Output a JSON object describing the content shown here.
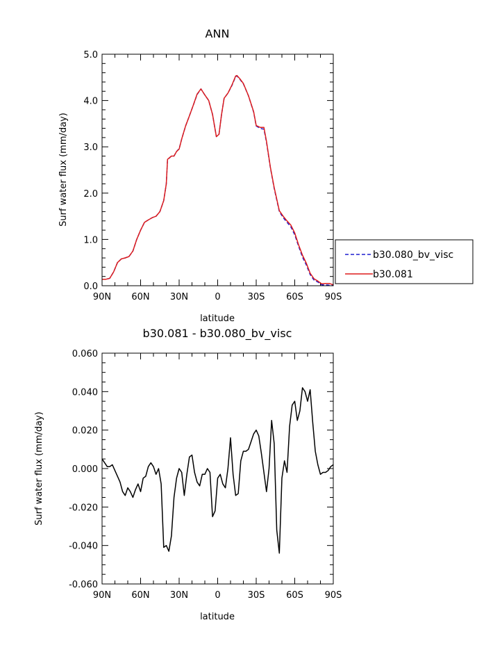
{
  "chart_data": [
    {
      "type": "line",
      "title": "ANN",
      "xlabel": "latitude",
      "ylabel": "Surf water flux (mm/day)",
      "xlim": [
        90,
        -90
      ],
      "ylim": [
        0,
        5
      ],
      "x_tick_values": [
        90,
        60,
        30,
        0,
        -30,
        -60,
        -90
      ],
      "x_tick_labels": [
        "90N",
        "60N",
        "30N",
        "0",
        "30S",
        "60S",
        "90S"
      ],
      "y_tick_values": [
        0,
        1,
        2,
        3,
        4,
        5
      ],
      "y_tick_labels": [
        "0.0",
        "1.0",
        "2.0",
        "3.0",
        "4.0",
        "5.0"
      ],
      "legend_position": "right",
      "x": [
        90,
        87,
        84,
        81,
        78,
        75,
        72,
        69,
        66,
        63,
        60,
        57,
        54,
        51,
        48,
        45,
        42,
        40,
        39,
        36,
        34,
        32,
        30,
        28,
        25,
        22,
        19,
        16,
        13,
        10,
        7,
        4,
        1,
        -1,
        -3,
        -5,
        -8,
        -11,
        -14,
        -15,
        -17,
        -20,
        -24,
        -28,
        -30,
        -33,
        -36,
        -38,
        -41,
        -44,
        -48,
        -51,
        -54,
        -57,
        -60,
        -63,
        -66,
        -69,
        -72,
        -75,
        -78,
        -81,
        -84,
        -87,
        -90
      ],
      "series": [
        {
          "name": "b30.080_bv_visc",
          "color": "#1f1fcf",
          "dash": "dashed",
          "values": [
            0.14,
            0.14,
            0.16,
            0.3,
            0.5,
            0.58,
            0.6,
            0.63,
            0.75,
            1.0,
            1.2,
            1.37,
            1.42,
            1.47,
            1.5,
            1.6,
            1.84,
            2.2,
            2.72,
            2.8,
            2.8,
            2.9,
            2.96,
            3.17,
            3.45,
            3.67,
            3.9,
            4.13,
            4.25,
            4.12,
            4.0,
            3.7,
            3.22,
            3.27,
            3.7,
            4.05,
            4.16,
            4.32,
            4.52,
            4.53,
            4.47,
            4.36,
            4.1,
            3.75,
            3.45,
            3.4,
            3.38,
            3.1,
            2.55,
            2.1,
            1.6,
            1.47,
            1.37,
            1.27,
            1.1,
            0.85,
            0.62,
            0.45,
            0.24,
            0.12,
            0.08,
            0.02,
            0.02,
            0.01,
            0.02
          ]
        },
        {
          "name": "b30.081",
          "color": "#dd1c1c",
          "dash": "solid",
          "values": [
            0.14,
            0.14,
            0.16,
            0.3,
            0.5,
            0.58,
            0.6,
            0.63,
            0.75,
            1.0,
            1.2,
            1.37,
            1.42,
            1.47,
            1.5,
            1.6,
            1.84,
            2.2,
            2.73,
            2.8,
            2.8,
            2.9,
            2.95,
            3.17,
            3.45,
            3.67,
            3.9,
            4.14,
            4.25,
            4.12,
            4.0,
            3.7,
            3.22,
            3.27,
            3.7,
            4.05,
            4.16,
            4.33,
            4.53,
            4.54,
            4.48,
            4.37,
            4.1,
            3.76,
            3.46,
            3.42,
            3.42,
            3.12,
            2.56,
            2.12,
            1.62,
            1.5,
            1.4,
            1.31,
            1.14,
            0.88,
            0.66,
            0.49,
            0.27,
            0.15,
            0.1,
            0.04,
            0.05,
            0.05,
            0.02
          ]
        }
      ]
    },
    {
      "type": "line",
      "title": "b30.081 - b30.080_bv_visc",
      "xlabel": "latitude",
      "ylabel": "Surf water flux (mm/day)",
      "xlim": [
        90,
        -90
      ],
      "ylim": [
        -0.06,
        0.06
      ],
      "x_tick_values": [
        90,
        60,
        30,
        0,
        -30,
        -60,
        -90
      ],
      "x_tick_labels": [
        "90N",
        "60N",
        "30N",
        "0",
        "30S",
        "60S",
        "90S"
      ],
      "y_tick_values": [
        -0.06,
        -0.04,
        -0.02,
        0,
        0.02,
        0.04,
        0.06
      ],
      "y_tick_labels": [
        "-0.060",
        "-0.040",
        "-0.020",
        "0.000",
        "0.020",
        "0.040",
        "0.060"
      ],
      "x": [
        90,
        88,
        86,
        84,
        82,
        80,
        78,
        76,
        74,
        72,
        70,
        68,
        66,
        64,
        62,
        60,
        58,
        56,
        54,
        52,
        50,
        48,
        46,
        44,
        42,
        40,
        38,
        36,
        34,
        32,
        30,
        28,
        26,
        24,
        22,
        20,
        18,
        16,
        14,
        12,
        10,
        8,
        6,
        4,
        2,
        0,
        -2,
        -4,
        -6,
        -8,
        -10,
        -12,
        -14,
        -16,
        -18,
        -20,
        -22,
        -24,
        -26,
        -28,
        -30,
        -32,
        -34,
        -36,
        -38,
        -40,
        -42,
        -44,
        -46,
        -48,
        -50,
        -52,
        -54,
        -56,
        -58,
        -60,
        -62,
        -64,
        -66,
        -68,
        -70,
        -72,
        -74,
        -76,
        -78,
        -80,
        -82,
        -84,
        -86,
        -88,
        -90
      ],
      "series": [
        {
          "name": "",
          "color": "#000000",
          "dash": "solid",
          "values": [
            0.005,
            0.003,
            0.001,
            0.001,
            0.002,
            -0.001,
            -0.004,
            -0.007,
            -0.012,
            -0.014,
            -0.01,
            -0.012,
            -0.015,
            -0.011,
            -0.008,
            -0.012,
            -0.005,
            -0.004,
            0.001,
            0.003,
            0.001,
            -0.003,
            0.0,
            -0.008,
            -0.041,
            -0.04,
            -0.043,
            -0.035,
            -0.015,
            -0.005,
            0.0,
            -0.002,
            -0.014,
            -0.003,
            0.006,
            0.007,
            -0.002,
            -0.007,
            -0.009,
            -0.003,
            -0.003,
            0.0,
            -0.002,
            -0.025,
            -0.022,
            -0.005,
            -0.003,
            -0.008,
            -0.01,
            0.0,
            0.016,
            -0.003,
            -0.014,
            -0.013,
            0.004,
            0.009,
            0.009,
            0.01,
            0.014,
            0.018,
            0.02,
            0.017,
            0.008,
            -0.002,
            -0.012,
            0.0,
            0.025,
            0.013,
            -0.032,
            -0.044,
            -0.005,
            0.004,
            -0.002,
            0.022,
            0.033,
            0.035,
            0.025,
            0.03,
            0.042,
            0.04,
            0.035,
            0.041,
            0.024,
            0.009,
            0.002,
            -0.003,
            -0.002,
            -0.002,
            -0.001,
            0.001,
            0.002
          ]
        }
      ]
    }
  ]
}
